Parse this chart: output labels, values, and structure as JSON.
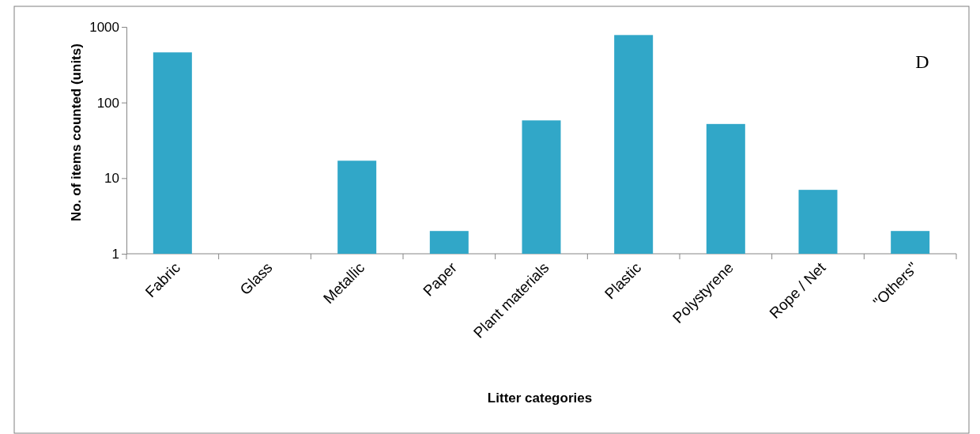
{
  "chart_data": {
    "type": "bar",
    "xlabel": "Litter categories",
    "ylabel": "No. of items counted (units)",
    "categories": [
      "Fabric",
      "Glass",
      "Metallic",
      "Paper",
      "Plant materials",
      "Plastic",
      "Polystyrene",
      "Rope / Net",
      "\"Others\""
    ],
    "values": [
      460,
      null,
      17,
      2,
      58,
      780,
      52,
      7,
      2
    ],
    "color": "#31a7c8",
    "log": true,
    "ylim": [
      1,
      1000
    ],
    "yticks": [
      1,
      10,
      100,
      1000
    ],
    "grid": false,
    "annotations": [
      {
        "text": "D"
      }
    ]
  }
}
